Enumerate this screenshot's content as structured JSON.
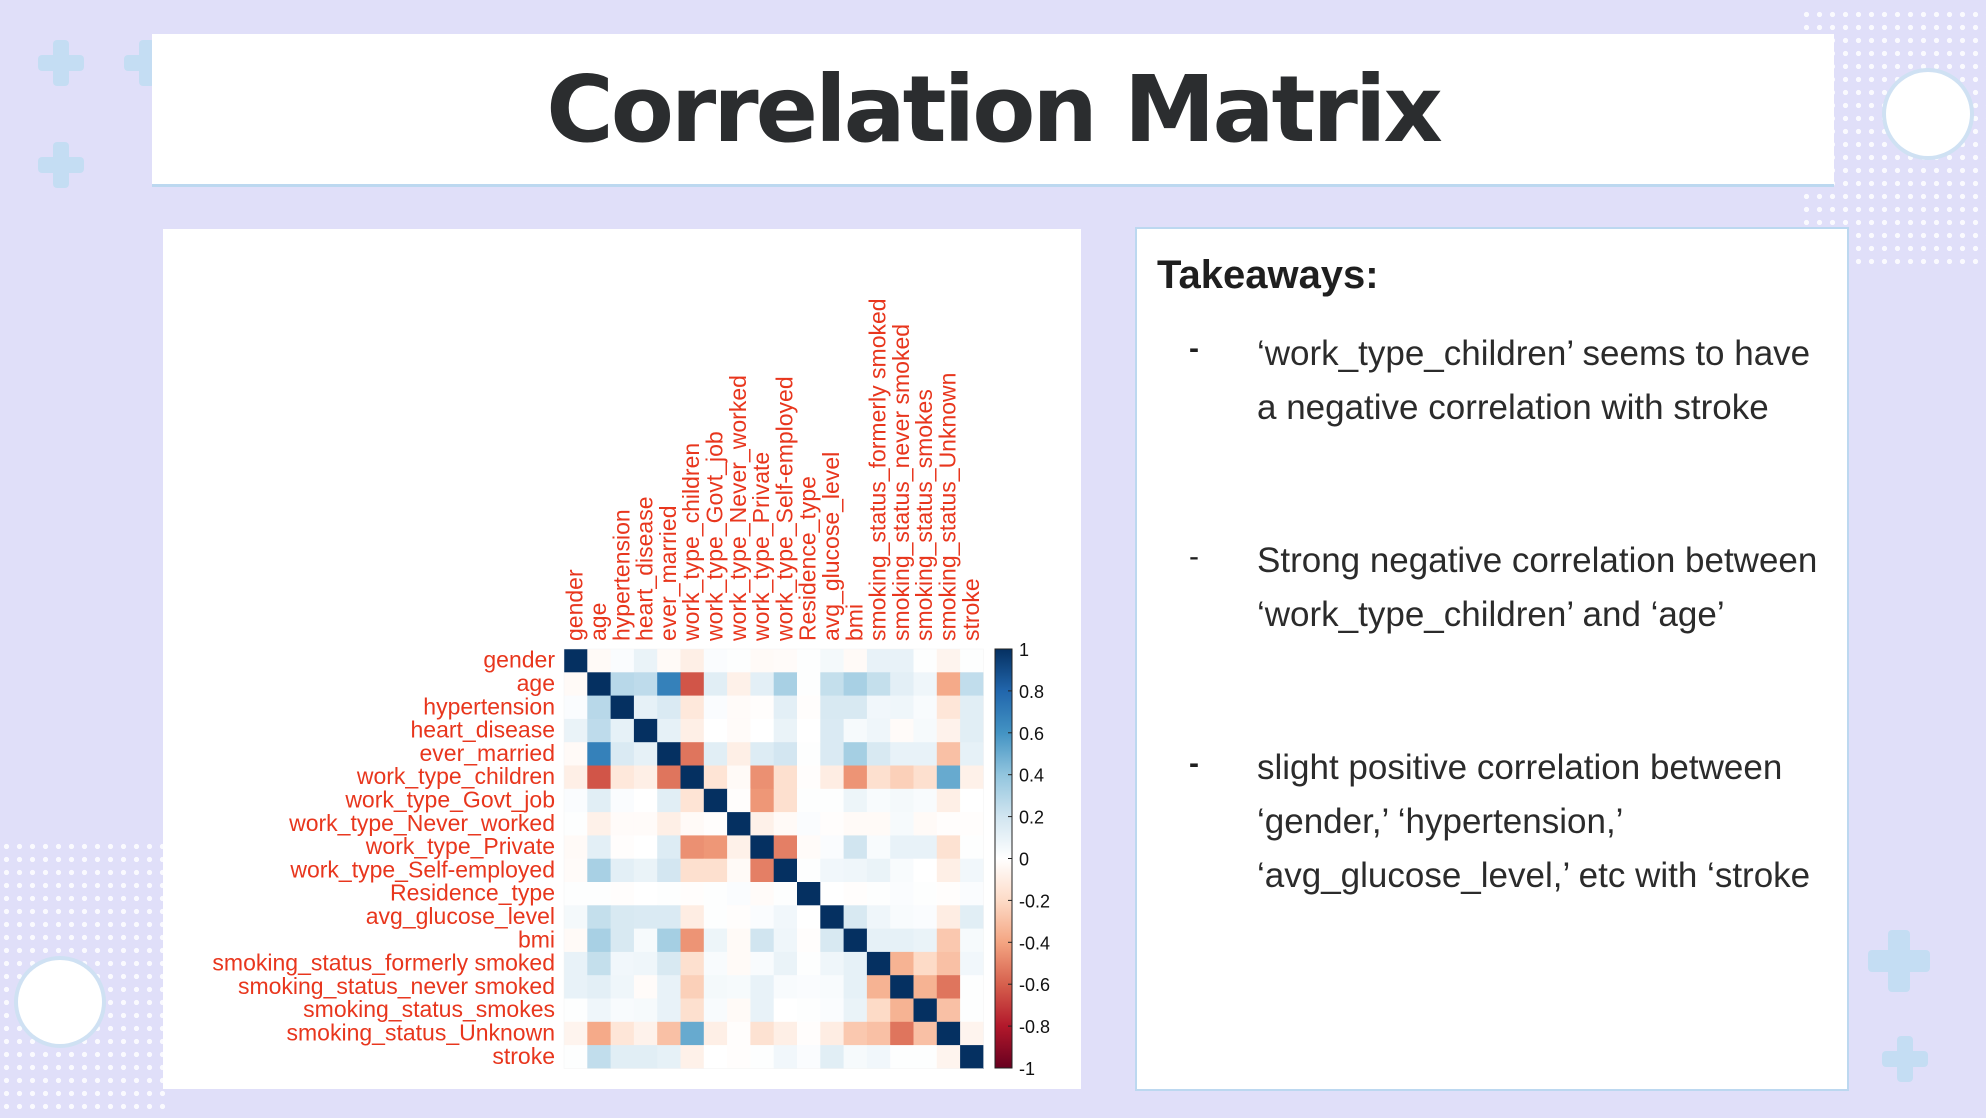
{
  "slide": {
    "title": "Correlation Matrix"
  },
  "takeaways": {
    "heading": "Takeaways:",
    "items": [
      {
        "marker": "-",
        "text": "‘work_type_children’ seems to have a negative correlation with stroke"
      },
      {
        "marker": "-",
        "text": "Strong negative correlation between ‘work_type_children’ and ‘age’"
      },
      {
        "marker": "-",
        "text": "slight positive correlation between ‘gender,’ ‘hypertension,’ ‘avg_glucose_level,’ etc with ‘stroke"
      }
    ]
  },
  "chart_data": {
    "type": "heatmap",
    "variables": [
      "gender",
      "age",
      "hypertension",
      "heart_disease",
      "ever_married",
      "work_type_children",
      "work_type_Govt_job",
      "work_type_Never_worked",
      "work_type_Private",
      "work_type_Self-employed",
      "Residence_type",
      "avg_glucose_level",
      "bmi",
      "smoking_status_formerly smoked",
      "smoking_status_never smoked",
      "smoking_status_smokes",
      "smoking_status_Unknown",
      "stroke"
    ],
    "matrix": [
      [
        1,
        -0.03,
        0.02,
        0.09,
        -0.03,
        -0.09,
        0.02,
        0.01,
        -0.03,
        -0.02,
        0.01,
        0.05,
        -0.03,
        0.1,
        0.1,
        0.01,
        -0.06,
        0.01
      ],
      [
        -0.03,
        1,
        0.28,
        0.26,
        0.68,
        -0.63,
        0.13,
        -0.08,
        0.12,
        0.33,
        0.01,
        0.24,
        0.33,
        0.24,
        0.12,
        0.07,
        -0.38,
        0.25
      ],
      [
        0.02,
        0.28,
        1,
        0.11,
        0.16,
        -0.13,
        0.02,
        -0.02,
        -0.01,
        0.12,
        -0.01,
        0.17,
        0.17,
        0.06,
        0.07,
        0.03,
        -0.14,
        0.13
      ],
      [
        0.09,
        0.26,
        0.11,
        1,
        0.11,
        -0.09,
        0,
        -0.02,
        0,
        0.09,
        0,
        0.16,
        0.04,
        0.07,
        -0.02,
        0.04,
        -0.07,
        0.13
      ],
      [
        -0.03,
        0.68,
        0.16,
        0.11,
        1,
        -0.54,
        0.13,
        -0.09,
        0.15,
        0.19,
        0.01,
        0.16,
        0.34,
        0.17,
        0.1,
        0.1,
        -0.3,
        0.11
      ],
      [
        -0.09,
        -0.63,
        -0.13,
        -0.09,
        -0.54,
        1,
        -0.15,
        -0.03,
        -0.46,
        -0.17,
        -0.01,
        -0.1,
        -0.45,
        -0.17,
        -0.24,
        -0.17,
        0.51,
        -0.08
      ],
      [
        0.02,
        0.13,
        0.02,
        0,
        0.13,
        -0.15,
        1,
        -0.01,
        -0.44,
        -0.17,
        0.01,
        0.01,
        0.08,
        0.03,
        0.05,
        0.03,
        -0.09,
        0
      ],
      [
        0.01,
        -0.08,
        -0.02,
        -0.02,
        -0.09,
        -0.03,
        -0.01,
        1,
        -0.08,
        -0.03,
        0.02,
        -0.01,
        -0.03,
        -0.03,
        0.04,
        -0.03,
        -0.01,
        -0.01
      ],
      [
        -0.03,
        0.12,
        -0.01,
        0,
        0.15,
        -0.46,
        -0.44,
        -0.08,
        1,
        -0.51,
        -0.02,
        0.02,
        0.2,
        0.03,
        0.1,
        0.1,
        -0.16,
        0.01
      ],
      [
        -0.02,
        0.33,
        0.12,
        0.09,
        0.19,
        -0.17,
        -0.17,
        -0.03,
        -0.51,
        1,
        0.01,
        0.06,
        0.07,
        0.09,
        0.03,
        0,
        -0.09,
        0.06
      ],
      [
        0.01,
        0.01,
        -0.01,
        0,
        0.01,
        -0.01,
        0.01,
        0.02,
        -0.02,
        0.01,
        1,
        0,
        -0.01,
        0.01,
        0.02,
        0.01,
        -0.01,
        0.02
      ],
      [
        0.05,
        0.24,
        0.17,
        0.16,
        0.16,
        -0.1,
        0.01,
        -0.01,
        0.02,
        0.06,
        0,
        1,
        0.17,
        0.07,
        0.03,
        0.02,
        -0.1,
        0.13
      ],
      [
        -0.03,
        0.33,
        0.17,
        0.04,
        0.34,
        -0.45,
        0.08,
        -0.03,
        0.2,
        0.07,
        -0.01,
        0.17,
        1,
        0.11,
        0.11,
        0.09,
        -0.27,
        0.04
      ],
      [
        0.1,
        0.24,
        0.06,
        0.07,
        0.17,
        -0.17,
        0.03,
        -0.03,
        0.03,
        0.09,
        0.01,
        0.07,
        0.11,
        1,
        -0.35,
        -0.2,
        -0.3,
        0.06
      ],
      [
        0.1,
        0.12,
        0.07,
        -0.02,
        0.1,
        -0.24,
        0.05,
        0.04,
        0.1,
        0.03,
        0.02,
        0.03,
        0.11,
        -0.35,
        1,
        -0.35,
        -0.54,
        0.01
      ],
      [
        0.01,
        0.07,
        0.03,
        0.04,
        0.1,
        -0.17,
        0.03,
        -0.03,
        0.1,
        0,
        0.01,
        0.02,
        0.09,
        -0.2,
        -0.35,
        1,
        -0.3,
        0.01
      ],
      [
        -0.06,
        -0.38,
        -0.14,
        -0.07,
        -0.3,
        0.51,
        -0.09,
        -0.01,
        -0.16,
        -0.09,
        -0.01,
        -0.1,
        -0.27,
        -0.3,
        -0.54,
        -0.3,
        1,
        -0.06
      ],
      [
        0.01,
        0.25,
        0.13,
        0.13,
        0.11,
        -0.08,
        0,
        -0.01,
        0.01,
        0.06,
        0.02,
        0.13,
        0.04,
        0.06,
        0.01,
        0.01,
        -0.06,
        1
      ]
    ],
    "colorbar": {
      "ticks": [
        "1",
        "0.8",
        "0.6",
        "0.4",
        "0.2",
        "0",
        "-0.2",
        "-0.4",
        "-0.6",
        "-0.8",
        "-1"
      ],
      "range": [
        -1,
        1
      ]
    },
    "colors": {
      "negative": "#67001f",
      "neutral": "#ffffff",
      "positive": "#053061",
      "labels": "#e8361d"
    }
  }
}
